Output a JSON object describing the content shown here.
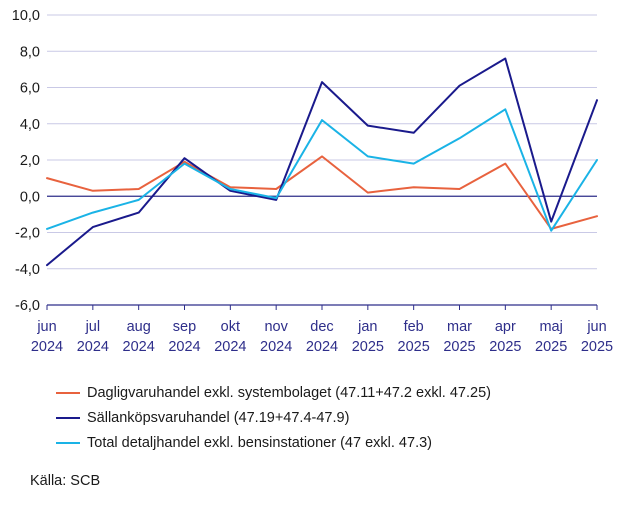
{
  "chart_data": {
    "type": "line",
    "title": "",
    "xlabel": "",
    "ylabel": "",
    "ylim": [
      -6,
      10
    ],
    "yticks": [
      "-6,0",
      "-4,0",
      "-2,0",
      "0,0",
      "2,0",
      "4,0",
      "6,0",
      "8,0",
      "10,0"
    ],
    "ytick_values": [
      -6,
      -4,
      -2,
      0,
      2,
      4,
      6,
      8,
      10
    ],
    "categories": [
      [
        "jun",
        "2024"
      ],
      [
        "jul",
        "2024"
      ],
      [
        "aug",
        "2024"
      ],
      [
        "sep",
        "2024"
      ],
      [
        "okt",
        "2024"
      ],
      [
        "nov",
        "2024"
      ],
      [
        "dec",
        "2024"
      ],
      [
        "jan",
        "2025"
      ],
      [
        "feb",
        "2025"
      ],
      [
        "mar",
        "2025"
      ],
      [
        "apr",
        "2025"
      ],
      [
        "maj",
        "2025"
      ],
      [
        "jun",
        "2025"
      ]
    ],
    "grid": true,
    "legend_position": "bottom",
    "axis_color": "#2e2e8a",
    "grid_color": "#c9c9e6",
    "series": [
      {
        "name": "Dagligvaruhandel exkl. systembolaget (47.11+47.2 exkl. 47.25)",
        "color": "#e8623e",
        "values": [
          1.0,
          0.3,
          0.4,
          1.9,
          0.5,
          0.4,
          2.2,
          0.2,
          0.5,
          0.4,
          1.8,
          -1.8,
          -1.1
        ]
      },
      {
        "name": "Sällanköpsvaruhandel (47.19+47.4-47.9)",
        "color": "#1a1a8c",
        "values": [
          -3.8,
          -1.7,
          -0.9,
          2.1,
          0.3,
          -0.2,
          6.3,
          3.9,
          3.5,
          6.1,
          7.6,
          -1.4,
          5.3
        ]
      },
      {
        "name": "Total detaljhandel exkl. bensinstationer (47 exkl. 47.3)",
        "color": "#1ab3e6",
        "values": [
          -1.8,
          -0.9,
          -0.2,
          1.8,
          0.4,
          -0.1,
          4.2,
          2.2,
          1.8,
          3.2,
          4.8,
          -1.9,
          2.0
        ]
      }
    ]
  },
  "source": "Källa: SCB"
}
